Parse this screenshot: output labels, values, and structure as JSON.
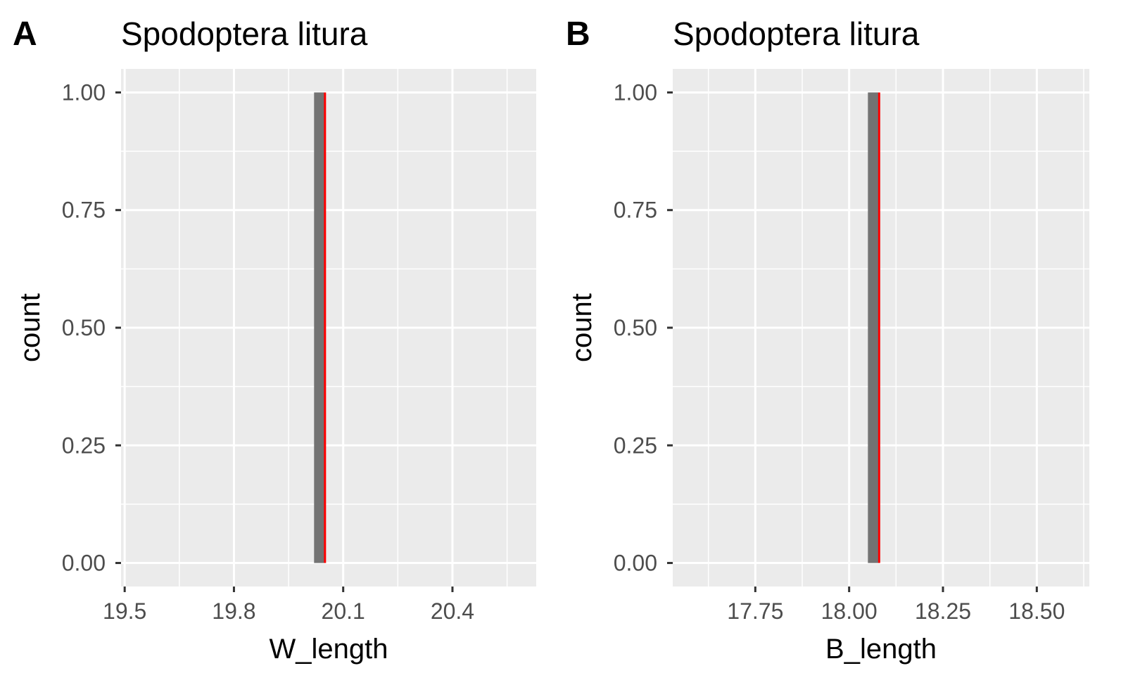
{
  "colors": {
    "panel_bg": "#ebebeb",
    "grid": "#ffffff",
    "bar_fill": "#737373",
    "mean_line": "#ff0000",
    "tick": "#333333"
  },
  "chart_data": [
    {
      "type": "bar",
      "panel_tag": "A",
      "title": "Spodoptera litura",
      "xlabel": "W_length",
      "ylabel": "count",
      "xlim": [
        19.49,
        20.63
      ],
      "ylim": [
        -0.05,
        1.05
      ],
      "xticks": [
        19.5,
        19.8,
        20.1,
        20.4
      ],
      "xtick_labels": [
        "19.5",
        "19.8",
        "20.1",
        "20.4"
      ],
      "yticks": [
        0,
        0.25,
        0.5,
        0.75,
        1
      ],
      "ytick_labels": [
        "0.00",
        "0.25",
        "0.50",
        "0.75",
        "1.00"
      ],
      "bars": [
        {
          "x_start": 20.02,
          "x_end": 20.05,
          "count": 1
        }
      ],
      "vline": {
        "x": 20.05,
        "color": "#ff0000"
      },
      "grid": true
    },
    {
      "type": "bar",
      "panel_tag": "B",
      "title": "Spodoptera litura",
      "xlabel": "B_length",
      "ylabel": "count",
      "xlim": [
        17.53,
        18.64
      ],
      "ylim": [
        -0.05,
        1.05
      ],
      "xticks": [
        17.75,
        18.0,
        18.25,
        18.5
      ],
      "xtick_labels": [
        "17.75",
        "18.00",
        "18.25",
        "18.50"
      ],
      "yticks": [
        0,
        0.25,
        0.5,
        0.75,
        1
      ],
      "ytick_labels": [
        "0.00",
        "0.25",
        "0.50",
        "0.75",
        "1.00"
      ],
      "bars": [
        {
          "x_start": 18.05,
          "x_end": 18.08,
          "count": 1
        }
      ],
      "vline": {
        "x": 18.08,
        "color": "#ff0000"
      },
      "grid": true
    }
  ]
}
